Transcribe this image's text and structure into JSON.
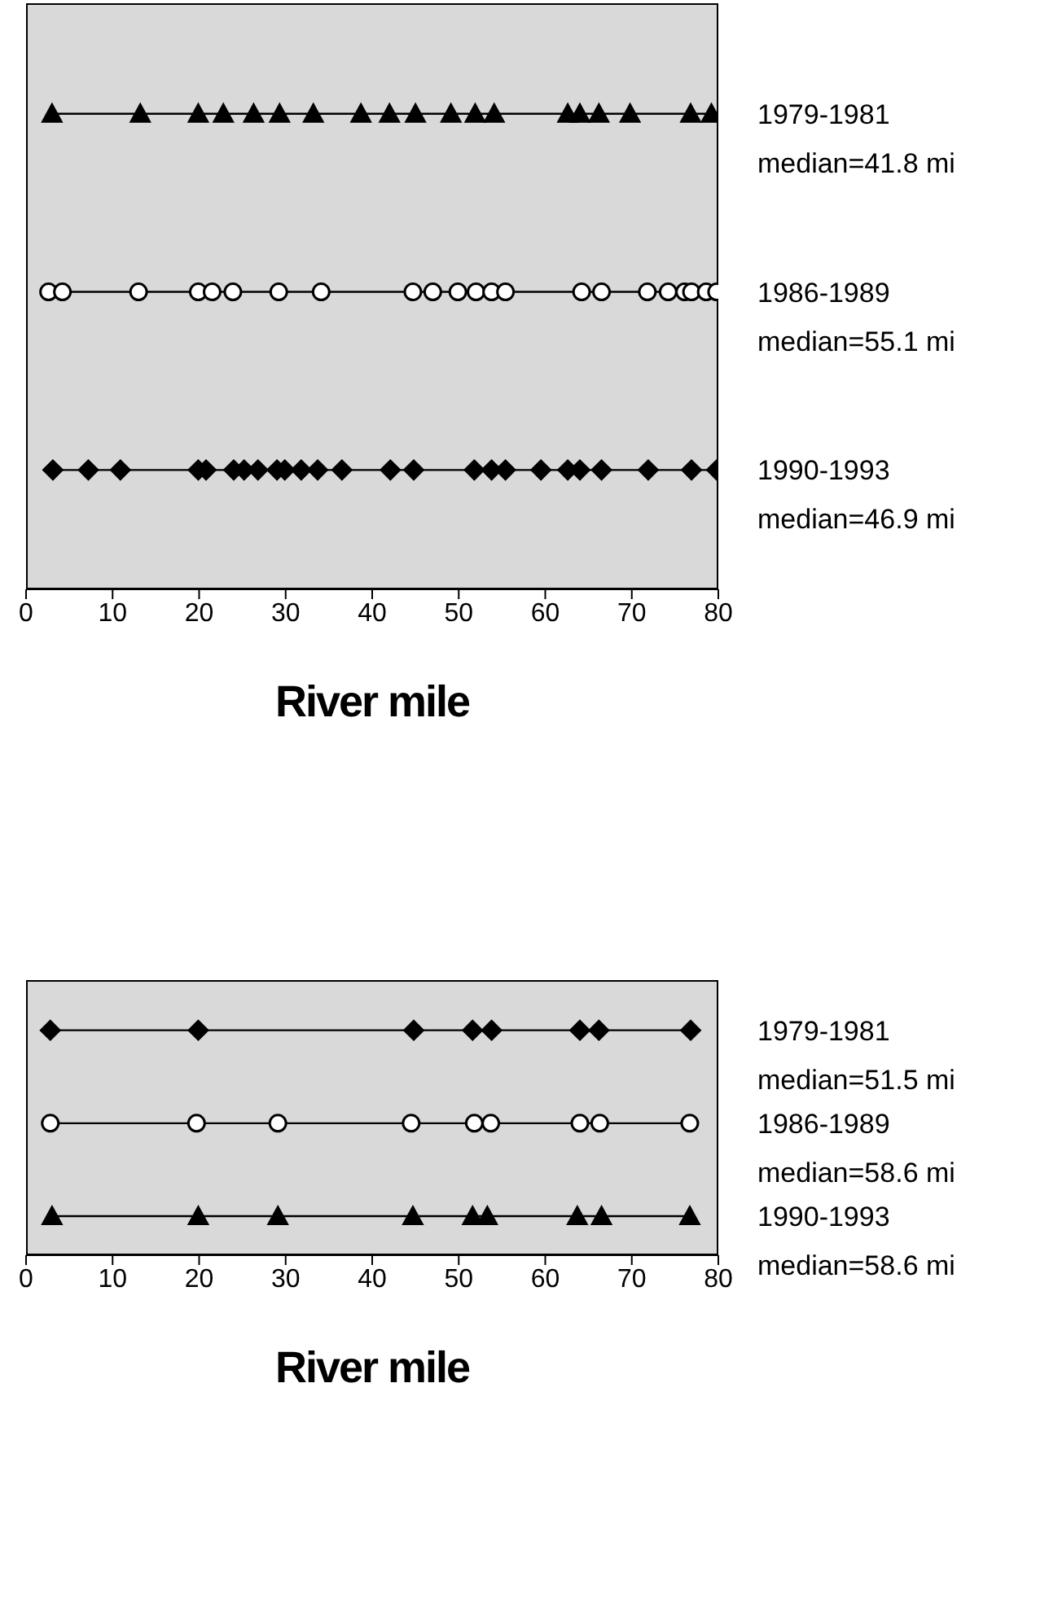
{
  "chart_data": [
    {
      "type": "scatter",
      "orientation": "horizontal",
      "xlabel": "River mile",
      "xlim": [
        0,
        80
      ],
      "xticks": [
        0,
        10,
        20,
        30,
        40,
        50,
        60,
        70,
        80
      ],
      "line_style": "solid",
      "categories": [
        "1979-1981",
        "1986-1989",
        "1990-1993"
      ],
      "annotations": [
        "median=41.8 mi",
        "median=55.1 mi",
        "median=46.9 mi"
      ],
      "series": [
        {
          "color": "#000000",
          "marker": "triangle",
          "x": [
            "1979-1981",
            "1979-1981",
            "1979-1981",
            "1979-1981",
            "1979-1981",
            "1979-1981",
            "1979-1981",
            "1979-1981",
            "1979-1981",
            "1979-1981",
            "1979-1981",
            "1979-1981",
            "1979-1981",
            "1979-1981",
            "1979-1981",
            "1979-1981",
            "1979-1981",
            "1979-1981",
            "1979-1981"
          ],
          "values": [
            3.0,
            13.2,
            19.9,
            22.8,
            26.3,
            29.3,
            33.2,
            38.7,
            42.0,
            45.0,
            49.1,
            51.9,
            54.1,
            62.6,
            64.0,
            66.2,
            69.8,
            76.8,
            79.2
          ]
        },
        {
          "color": "#000000",
          "marker": "circle",
          "x": [
            "1986-1989",
            "1986-1989",
            "1986-1989",
            "1986-1989",
            "1986-1989",
            "1986-1989",
            "1986-1989",
            "1986-1989",
            "1986-1989",
            "1986-1989",
            "1986-1989",
            "1986-1989",
            "1986-1989",
            "1986-1989",
            "1986-1989",
            "1986-1989",
            "1986-1989",
            "1986-1989",
            "1986-1989",
            "1986-1989",
            "1986-1989",
            "1986-1989"
          ],
          "values": [
            2.6,
            4.2,
            13.0,
            19.9,
            21.5,
            23.9,
            29.2,
            34.1,
            44.7,
            47.0,
            49.9,
            52.0,
            53.8,
            55.4,
            64.2,
            66.5,
            71.8,
            74.2,
            76.1,
            76.9,
            78.6,
            79.8
          ]
        },
        {
          "color": "#000000",
          "marker": "diamond",
          "x": [
            "1990-1993",
            "1990-1993",
            "1990-1993",
            "1990-1993",
            "1990-1993",
            "1990-1993",
            "1990-1993",
            "1990-1993",
            "1990-1993",
            "1990-1993",
            "1990-1993",
            "1990-1993",
            "1990-1993",
            "1990-1993",
            "1990-1993",
            "1990-1993",
            "1990-1993",
            "1990-1993",
            "1990-1993",
            "1990-1993",
            "1990-1993",
            "1990-1993",
            "1990-1993",
            "1990-1993",
            "1990-1993"
          ],
          "values": [
            3.1,
            7.2,
            10.9,
            19.9,
            20.8,
            24.0,
            25.2,
            26.8,
            29.0,
            29.9,
            31.8,
            33.7,
            36.5,
            42.1,
            44.8,
            51.8,
            53.8,
            55.4,
            59.5,
            62.6,
            64.0,
            66.5,
            71.9,
            76.9,
            79.8
          ]
        }
      ]
    },
    {
      "type": "scatter",
      "orientation": "horizontal",
      "xlabel": "River mile",
      "xlim": [
        0,
        80
      ],
      "xticks": [
        0,
        10,
        20,
        30,
        40,
        50,
        60,
        70,
        80
      ],
      "line_style": "solid",
      "categories": [
        "1979-1981",
        "1986-1989",
        "1990-1993"
      ],
      "annotations": [
        "median=51.5 mi",
        "median=58.6 mi",
        "median=58.6 mi"
      ],
      "series": [
        {
          "color": "#000000",
          "marker": "diamond",
          "x": [
            "1979-1981",
            "1979-1981",
            "1979-1981",
            "1979-1981",
            "1979-1981",
            "1979-1981",
            "1979-1981",
            "1979-1981"
          ],
          "values": [
            2.8,
            19.9,
            44.8,
            51.6,
            53.8,
            64.0,
            66.2,
            76.8
          ]
        },
        {
          "color": "#000000",
          "marker": "circle",
          "x": [
            "1986-1989",
            "1986-1989",
            "1986-1989",
            "1986-1989",
            "1986-1989",
            "1986-1989",
            "1986-1989",
            "1986-1989",
            "1986-1989"
          ],
          "values": [
            2.8,
            19.7,
            29.1,
            44.5,
            51.8,
            53.7,
            64.0,
            66.3,
            76.7
          ]
        },
        {
          "color": "#000000",
          "marker": "triangle",
          "x": [
            "1990-1993",
            "1990-1993",
            "1990-1993",
            "1990-1993",
            "1990-1993",
            "1990-1993",
            "1990-1993",
            "1990-1993",
            "1990-1993"
          ],
          "values": [
            3.0,
            19.9,
            29.1,
            44.7,
            51.6,
            53.3,
            63.7,
            66.5,
            76.7
          ]
        }
      ]
    }
  ]
}
